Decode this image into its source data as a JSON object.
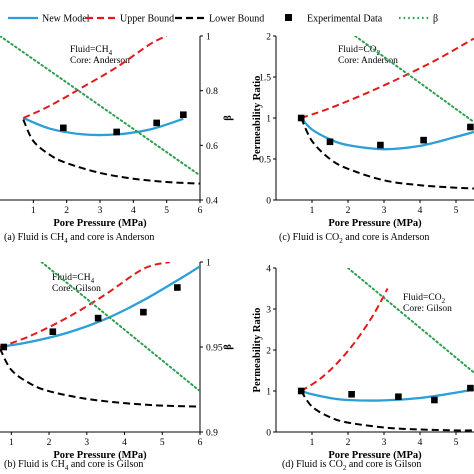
{
  "legend": {
    "items": [
      {
        "label": "New Model",
        "color": "#2a9fd8",
        "style": "solid"
      },
      {
        "label": "Upper Bound",
        "color": "#e31a1c",
        "style": "dashed"
      },
      {
        "label": "Lower Bound",
        "color": "#000000",
        "style": "dashed"
      },
      {
        "label": "Experimental Data",
        "color": "#000000",
        "style": "square-marker"
      },
      {
        "label": "β",
        "color": "#2e9e4f",
        "style": "dotted"
      }
    ]
  },
  "chart_data": [
    {
      "type": "line",
      "panel": "a",
      "caption_parts": [
        "(a) Fluid is CH",
        "4",
        " and core is Anderson"
      ],
      "annotation": {
        "line1_parts": [
          "Fluid=CH",
          "4"
        ],
        "line2": "Core: Anderson"
      },
      "xlabel": "Pore Pressure (MPa)",
      "ylabel": "",
      "y2label": "β",
      "xlim": [
        0,
        6
      ],
      "ylim": [
        0,
        2
      ],
      "y2lim": [
        0.4,
        1.0
      ],
      "x_ticks": [
        1,
        2,
        3,
        4,
        5,
        6
      ],
      "y2_ticks": [
        0.4,
        0.6,
        0.8,
        1
      ],
      "series": [
        {
          "name": "New Model",
          "x": [
            0.7,
            1.5,
            2.5,
            3.5,
            4.5,
            5.5
          ],
          "y": [
            1.0,
            0.87,
            0.8,
            0.8,
            0.86,
            0.99
          ]
        },
        {
          "name": "Upper Bound",
          "x": [
            0.7,
            1.5,
            2.5,
            3.5,
            4.5,
            5.0
          ],
          "y": [
            1.0,
            1.15,
            1.38,
            1.62,
            1.9,
            2.0
          ]
        },
        {
          "name": "Lower Bound",
          "x": [
            0.7,
            1.0,
            1.5,
            2.0,
            3.0,
            4.0,
            5.0,
            6.0
          ],
          "y": [
            0.98,
            0.72,
            0.55,
            0.45,
            0.33,
            0.26,
            0.22,
            0.2
          ]
        },
        {
          "name": "Experimental Data",
          "x": [
            1.9,
            3.5,
            4.7,
            5.5
          ],
          "y": [
            0.88,
            0.83,
            0.94,
            1.04
          ]
        },
        {
          "name": "β",
          "axis": "y2",
          "x": [
            0,
            6
          ],
          "y": [
            1.0,
            0.49
          ]
        }
      ]
    },
    {
      "type": "line",
      "panel": "c",
      "caption_parts": [
        "(c) Fluid is CO",
        "2",
        " and core is Anderson"
      ],
      "annotation": {
        "line1_parts": [
          "Fluid=CO",
          "2"
        ],
        "line2": "Core: Anderson"
      },
      "xlabel": "Pore Pressure (MPa)",
      "ylabel": "Permeability Ratio",
      "xlim": [
        0,
        5.5
      ],
      "ylim": [
        0,
        2
      ],
      "x_ticks": [
        1,
        2,
        3,
        4,
        5
      ],
      "y_ticks": [
        0,
        0.5,
        1,
        1.5,
        2
      ],
      "series": [
        {
          "name": "New Model",
          "x": [
            0.7,
            1.0,
            1.5,
            2.0,
            3.0,
            4.0,
            5.0,
            5.5
          ],
          "y": [
            1.0,
            0.86,
            0.74,
            0.67,
            0.62,
            0.66,
            0.77,
            0.83
          ]
        },
        {
          "name": "Upper Bound",
          "x": [
            0.7,
            1.5,
            2.5,
            3.5,
            4.5,
            5.5
          ],
          "y": [
            1.0,
            1.12,
            1.3,
            1.5,
            1.72,
            1.97
          ]
        },
        {
          "name": "Lower Bound",
          "x": [
            0.7,
            1.0,
            1.5,
            2.0,
            3.0,
            4.0,
            5.0,
            5.5
          ],
          "y": [
            1.0,
            0.72,
            0.5,
            0.38,
            0.24,
            0.18,
            0.15,
            0.14
          ]
        },
        {
          "name": "Experimental Data",
          "x": [
            0.7,
            1.5,
            2.9,
            4.1,
            5.4
          ],
          "y": [
            1.0,
            0.71,
            0.67,
            0.73,
            0.89
          ]
        },
        {
          "name": "β",
          "x": [
            2.2,
            5.5
          ],
          "y": [
            2.0,
            0.95
          ]
        }
      ]
    },
    {
      "type": "line",
      "panel": "b",
      "caption_parts": [
        "(b) Fluid is CH",
        "4",
        " and core is Gilson"
      ],
      "annotation": {
        "line1_parts": [
          "Fluid=CH",
          "4"
        ],
        "line2": "Core: Gilson"
      },
      "xlabel": "Pore Pressure (MPa)",
      "ylabel": "",
      "y2label": "β",
      "xlim": [
        0.7,
        6
      ],
      "ylim": [
        0,
        2
      ],
      "y2lim": [
        0.9,
        1.0
      ],
      "x_ticks": [
        1,
        2,
        3,
        4,
        5,
        6
      ],
      "y2_ticks": [
        0.9,
        0.95,
        1
      ],
      "series": [
        {
          "name": "New Model",
          "x": [
            0.7,
            1.5,
            2.5,
            3.5,
            4.5,
            5.5,
            6.0
          ],
          "y": [
            1.0,
            1.06,
            1.17,
            1.33,
            1.55,
            1.81,
            1.95
          ]
        },
        {
          "name": "Upper Bound",
          "x": [
            0.7,
            1.5,
            2.5,
            3.5,
            4.5,
            5.2
          ],
          "y": [
            1.0,
            1.13,
            1.35,
            1.62,
            1.92,
            2.0
          ]
        },
        {
          "name": "Lower Bound",
          "x": [
            0.7,
            1.0,
            1.5,
            2.0,
            3.0,
            4.0,
            5.0,
            6.0
          ],
          "y": [
            0.98,
            0.73,
            0.57,
            0.48,
            0.39,
            0.34,
            0.31,
            0.3
          ]
        },
        {
          "name": "Experimental Data",
          "x": [
            0.8,
            2.1,
            3.3,
            4.5,
            5.4
          ],
          "y": [
            1.0,
            1.18,
            1.34,
            1.41,
            1.7
          ]
        },
        {
          "name": "β",
          "axis": "y2",
          "x": [
            1.8,
            6.0
          ],
          "y": [
            1.0,
            0.924
          ]
        }
      ]
    },
    {
      "type": "line",
      "panel": "d",
      "caption_parts": [
        "(d) Fluid is CO",
        "2",
        " and core is Gilson"
      ],
      "annotation": {
        "line1_parts": [
          "Fluid=CO",
          "2"
        ],
        "line2": "Core: Gilson"
      },
      "xlabel": "Pore Pressure (MPa)",
      "ylabel": "Permeability Ratio",
      "xlim": [
        0,
        5.5
      ],
      "ylim": [
        0,
        4
      ],
      "x_ticks": [
        1,
        2,
        3,
        4,
        5
      ],
      "y_ticks": [
        0,
        1,
        2,
        3,
        4
      ],
      "series": [
        {
          "name": "New Model",
          "x": [
            0.7,
            1.0,
            1.5,
            2.0,
            3.0,
            4.0,
            5.0,
            5.5
          ],
          "y": [
            1.0,
            0.92,
            0.83,
            0.78,
            0.77,
            0.83,
            0.96,
            1.04
          ]
        },
        {
          "name": "Upper Bound",
          "x": [
            0.7,
            1.2,
            1.7,
            2.2,
            2.7,
            3.1
          ],
          "y": [
            1.0,
            1.28,
            1.68,
            2.2,
            2.85,
            3.5
          ]
        },
        {
          "name": "Lower Bound",
          "x": [
            0.7,
            1.0,
            1.5,
            2.0,
            3.0,
            4.0,
            5.0,
            5.5
          ],
          "y": [
            1.0,
            0.62,
            0.36,
            0.23,
            0.11,
            0.06,
            0.04,
            0.04
          ]
        },
        {
          "name": "Experimental Data",
          "x": [
            0.7,
            2.1,
            3.4,
            4.4,
            5.4
          ],
          "y": [
            1.0,
            0.92,
            0.86,
            0.78,
            1.07
          ]
        },
        {
          "name": "β",
          "x": [
            2.0,
            5.5
          ],
          "y": [
            4.0,
            1.45
          ]
        }
      ]
    }
  ]
}
